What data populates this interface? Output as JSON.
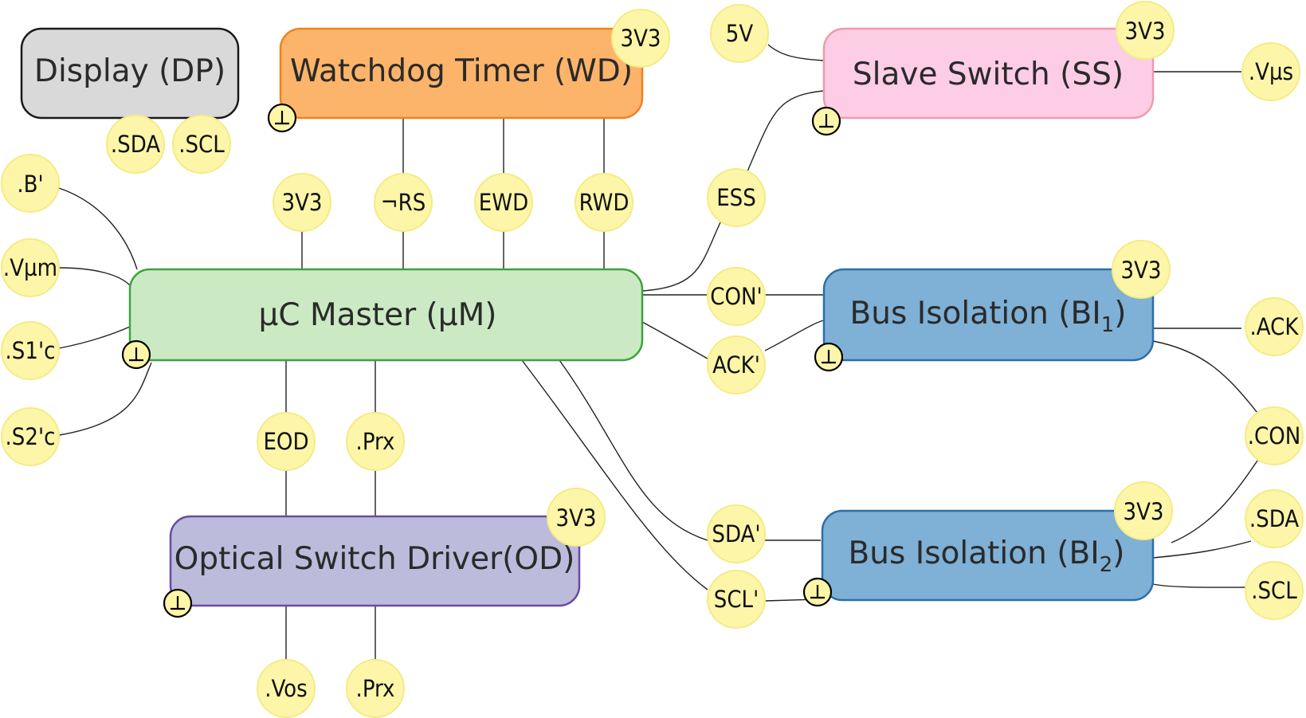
{
  "blocks": {
    "display": {
      "label": "Display (DP)",
      "fill": "#d9d9d9",
      "stroke": "#1a1a1a"
    },
    "watchdog": {
      "label": "Watchdog Timer (WD)",
      "fill": "#fbb469",
      "stroke": "#f0821e"
    },
    "slave_switch": {
      "label": "Slave Switch (SS)",
      "fill": "#fdcde6",
      "stroke": "#f09aaa"
    },
    "uc_master": {
      "label": "µC Master (µM)",
      "fill": "#cbeac4",
      "stroke": "#3ea23a"
    },
    "bus_isolation_1": {
      "label": "Bus Isolation (BI",
      "sub": "1",
      "suffix": ")",
      "fill": "#7fb0d5",
      "stroke": "#2c6fab"
    },
    "bus_isolation_2": {
      "label": "Bus Isolation (BI",
      "sub": "2",
      "suffix": ")",
      "fill": "#7fb0d5",
      "stroke": "#2c6fab"
    },
    "optical_driver": {
      "label": "Optical Switch Driver(OD)",
      "fill": "#bcbbdb",
      "stroke": "#6a4aa3"
    }
  },
  "pins": {
    "dp_sda": ".SDA",
    "dp_scl": ".SCL",
    "wd_3v3": "3V3",
    "ss_3v3": "3V3",
    "ss_5v": "5V",
    "ss_vus": ".Vµs",
    "b_prime": ".B'",
    "vum": ".Vµm",
    "s1c": ".S1'c",
    "s2c": ".S2'c",
    "um_3v3": "3V3",
    "not_rs": "¬RS",
    "ewd": "EWD",
    "rwd": "RWD",
    "ess": "ESS",
    "con_prime": "CON'",
    "ack_prime": "ACK'",
    "bi1_3v3": "3V3",
    "ack": ".ACK",
    "con": ".CON",
    "bi2_3v3": "3V3",
    "sda": ".SDA",
    "scl": ".SCL",
    "sda_prime": "SDA'",
    "scl_prime": "SCL'",
    "eod": "EOD",
    "prx_top": ".Prx",
    "od_3v3": "3V3",
    "vos": ".Vos",
    "prx_bottom": ".Prx"
  },
  "ground_symbol": "⊥"
}
